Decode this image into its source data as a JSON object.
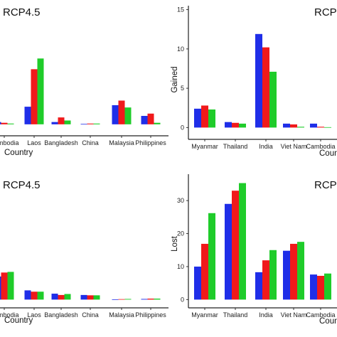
{
  "colors": {
    "series": [
      "#1f2ee8",
      "#f0191b",
      "#1fcc2a"
    ]
  },
  "chart_data": [
    {
      "type": "bar",
      "title": "RCP4.5",
      "xlabel": "Country",
      "ylabel": "",
      "categories": [
        "Cambodia",
        "Laos",
        "Bangladesh",
        "China",
        "Malaysia",
        "Philippines"
      ],
      "series": [
        {
          "values": [
            0.3,
            2.3,
            0.3,
            0.05,
            2.5,
            1.1
          ]
        },
        {
          "values": [
            0.2,
            7.2,
            0.9,
            0.1,
            3.1,
            1.4
          ]
        },
        {
          "values": [
            0.1,
            8.6,
            0.5,
            0.1,
            2.2,
            0.2
          ]
        }
      ],
      "ylim": [
        -1.5,
        15.5
      ],
      "grid": false
    },
    {
      "type": "bar",
      "title": "RCP",
      "xlabel": "Country",
      "ylabel": "Gained",
      "categories": [
        "Myanmar",
        "Thailand",
        "India",
        "Viet Nam",
        "Cambodia"
      ],
      "yticks": [
        "0",
        "5",
        "10",
        "15"
      ],
      "series": [
        {
          "values": [
            2.4,
            0.7,
            11.9,
            0.5,
            0.5
          ]
        },
        {
          "values": [
            2.8,
            0.6,
            10.2,
            0.4,
            0.1
          ]
        },
        {
          "values": [
            2.3,
            0.5,
            7.1,
            0.1,
            0.05
          ]
        }
      ],
      "ylim": [
        -1.5,
        15.5
      ],
      "grid": false
    },
    {
      "type": "bar",
      "title": "RCP4.5",
      "xlabel": "Country",
      "ylabel": "",
      "categories": [
        "Cambodia",
        "Laos",
        "Bangladesh",
        "China",
        "Malaysia",
        "Philippines"
      ],
      "series": [
        {
          "values": [
            7.0,
            2.8,
            1.8,
            1.4,
            0.1,
            0.2
          ]
        },
        {
          "values": [
            8.2,
            2.4,
            1.4,
            1.3,
            0.15,
            0.3
          ]
        },
        {
          "values": [
            8.4,
            2.4,
            1.7,
            1.3,
            0.2,
            0.3
          ]
        }
      ],
      "ylim": [
        -2.5,
        38
      ],
      "grid": false
    },
    {
      "type": "bar",
      "title": "RCP",
      "xlabel": "Country",
      "ylabel": "Lost",
      "categories": [
        "Myanmar",
        "Thailand",
        "India",
        "Viet Nam",
        "Cambodia"
      ],
      "yticks": [
        "0",
        "10",
        "20",
        "30"
      ],
      "series": [
        {
          "values": [
            10.0,
            29.0,
            8.3,
            14.8,
            7.6
          ]
        },
        {
          "values": [
            16.9,
            33.0,
            11.9,
            16.9,
            7.2
          ]
        },
        {
          "values": [
            26.2,
            35.3,
            15.0,
            17.5,
            7.9
          ]
        }
      ],
      "ylim": [
        -2.5,
        38
      ],
      "grid": false
    }
  ]
}
